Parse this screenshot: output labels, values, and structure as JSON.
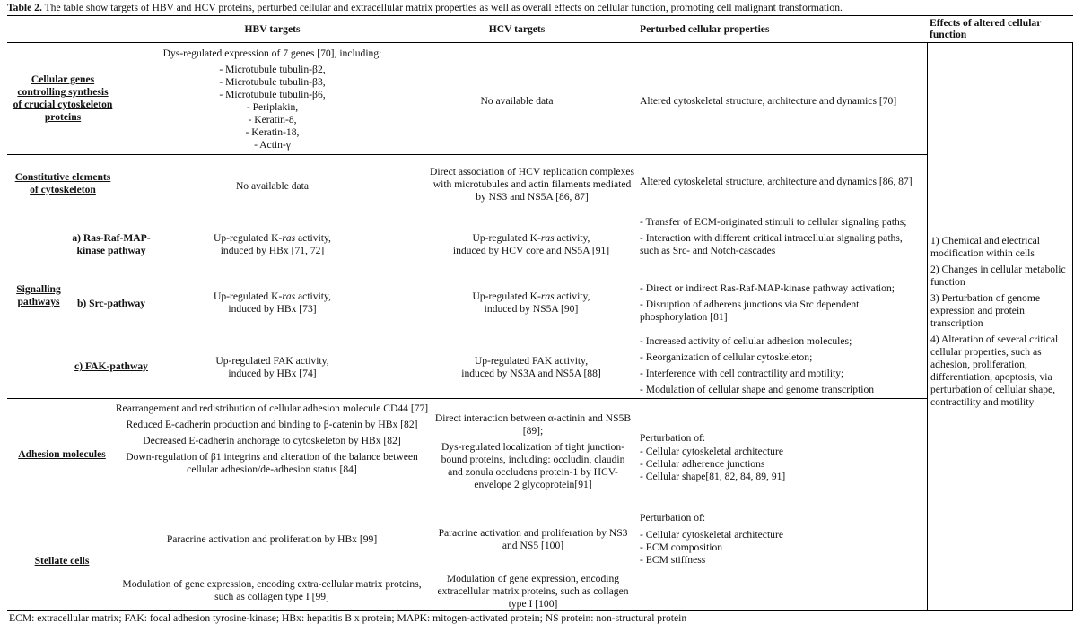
{
  "caption": {
    "label": "Table 2.",
    "text": " The table show targets of HBV and HCV proteins, perturbed cellular and extracellular matrix properties as well as overall effects on cellular function, promoting cell malignant transformation."
  },
  "headers": {
    "hbv": "HBV targets",
    "hcv": "HCV targets",
    "perturbed": "Perturbed cellular properties",
    "effects": "Effects of altered cellular function"
  },
  "rows": {
    "cyto_genes": {
      "label": "Cellular genes controlling synthesis of crucial cytoskeleton proteins",
      "hbv_intro": "Dys-regulated expression of 7 genes [70], including:",
      "hbv_items": [
        "- Microtubule tubulin-β2,",
        "- Microtubule tubulin-β3,",
        "- Microtubule tubulin-β6,",
        "- Periplakin,",
        "- Keratin-8,",
        "- Keratin-18,",
        "- Actin-γ"
      ],
      "hcv": "No available data",
      "perturbed": "Altered cytoskeletal structure, architecture and dynamics [70]"
    },
    "constitutive": {
      "label": "Constitutive elements of cytoskeleton",
      "hbv": "No available data",
      "hcv": "Direct association of HCV replication complexes with microtubules and actin filaments mediated by NS3 and NS5A [86, 87]",
      "perturbed": "Altered cytoskeletal structure, architecture and dynamics [86, 87]"
    },
    "signalling": {
      "label": "Signalling pathways",
      "sub": [
        {
          "label": "a) Ras-Raf-MAP-kinase pathway",
          "hbv_pre": "Up-regulated K-",
          "hbv_italic": "ras",
          "hbv_post": " activity,",
          "hbv_line2": "induced by HBx [71, 72]",
          "hcv_pre": "Up-regulated K-",
          "hcv_italic": "ras",
          "hcv_post": " activity,",
          "hcv_line2": "induced by HCV core and NS5A [91]",
          "perturbed": [
            "- Transfer of ECM-originated stimuli to cellular signaling paths;",
            "- Interaction with different critical intracellular signaling paths, such as Src- and Notch-cascades"
          ]
        },
        {
          "label": "b) Src-pathway",
          "hbv_pre": "Up-regulated K-",
          "hbv_italic": "ras",
          "hbv_post": " activity,",
          "hbv_line2": "induced by HBx [73]",
          "hcv_pre": "Up-regulated K-",
          "hcv_italic": "ras",
          "hcv_post": " activity,",
          "hcv_line2": "induced by NS5A [90]",
          "perturbed": [
            "- Direct or indirect Ras-Raf-MAP-kinase pathway activation;",
            "- Disruption of adherens junctions via Src dependent phosphorylation [81]"
          ]
        },
        {
          "label": "c) FAK-pathway",
          "hbv_pre": "Up-regulated FAK activity,",
          "hbv_italic": "",
          "hbv_post": "",
          "hbv_line2": "induced by HBx [74]",
          "hcv_pre": "Up-regulated FAK activity,",
          "hcv_italic": "",
          "hcv_post": "",
          "hcv_line2": "induced by NS3A and NS5A [88]",
          "perturbed": [
            "- Increased activity of cellular adhesion molecules;",
            "- Reorganization of cellular cytoskeleton;",
            "- Interference with cell contractility and motility;",
            "- Modulation of cellular shape and genome transcription"
          ]
        }
      ]
    },
    "adhesion": {
      "label": "Adhesion molecules",
      "hbv": [
        "Rearrangement and redistribution of cellular adhesion molecule CD44 [77]",
        "Reduced E-cadherin production and binding to β-catenin by HBx [82]",
        "Decreased E-cadherin anchorage to cytoskeleton by HBx [82]",
        "Down-regulation of β1 integrins and alteration of the balance between cellular adhesion/de-adhesion status [84]"
      ],
      "hcv": [
        "Direct interaction between α-actinin and NS5B [89];",
        "Dys-regulated localization of tight junction-bound proteins, including: occludin, claudin and zonula occludens protein-1 by HCV-envelope 2 glycoprotein[91]"
      ],
      "perturbed_intro": "Perturbation of:",
      "perturbed": [
        "- Cellular cytoskeletal architecture",
        "- Cellular adherence junctions",
        "- Cellular shape[81, 82, 84, 89, 91]"
      ]
    },
    "stellate": {
      "label": "Stellate cells",
      "hbv": [
        "Paracrine activation and proliferation by HBx [99]",
        "Modulation of gene expression, encoding extra-cellular matrix proteins, such as collagen type I [99]"
      ],
      "hcv": [
        "Paracrine activation and proliferation by NS3 and NS5 [100]",
        "Modulation of gene expression, encoding extracellular matrix proteins, such as collagen type I [100]"
      ],
      "perturbed_intro": "Perturbation of:",
      "perturbed": [
        "- Cellular cytoskeletal architecture",
        "- ECM composition",
        "- ECM stiffness"
      ]
    }
  },
  "effects": [
    "1) Chemical and electrical modification within cells",
    "2) Changes in cellular metabolic function",
    "3) Perturbation of genome expression and protein transcription",
    "4) Alteration of several critical cellular properties, such as adhesion, proliferation, differentiation, apoptosis, via perturbation of cellular shape, contractility and motility"
  ],
  "footnote": "ECM: extracellular matrix; FAK: focal adhesion tyrosine-kinase; HBx: hepatitis B x protein; MAPK: mitogen-activated protein; NS protein: non-structural protein"
}
